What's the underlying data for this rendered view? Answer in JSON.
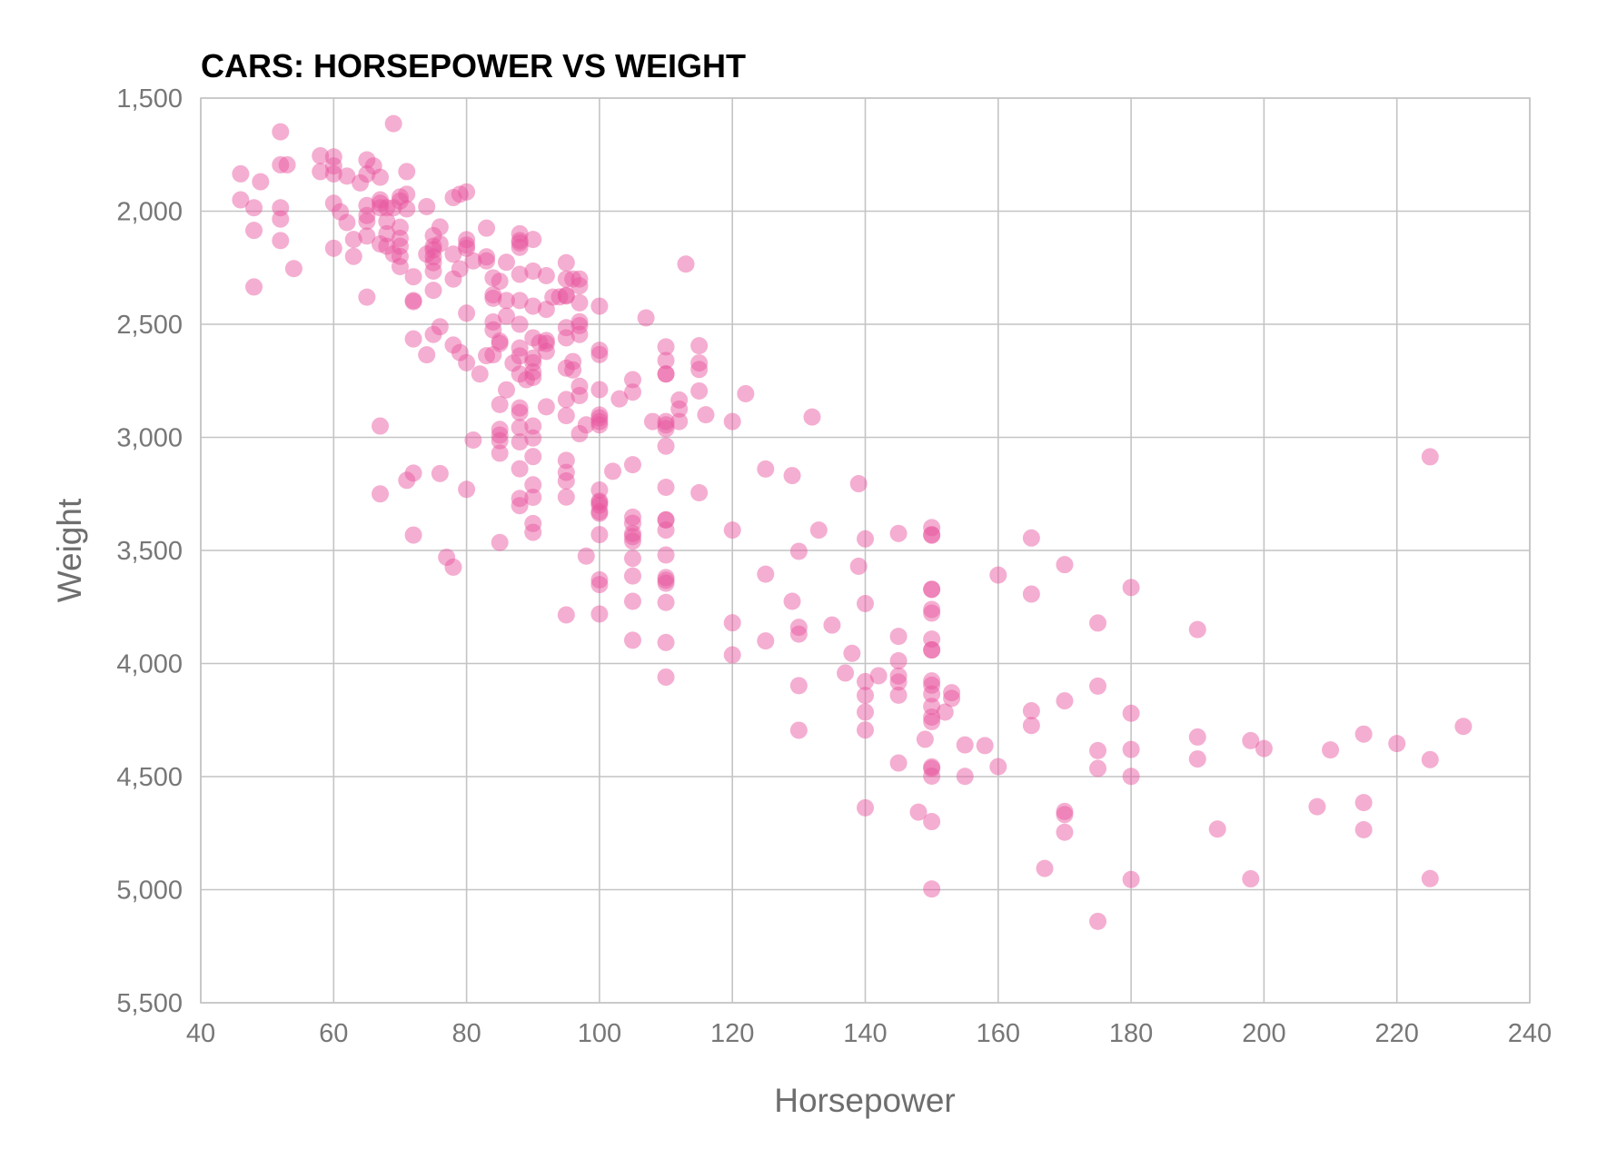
{
  "chart_data": {
    "type": "scatter",
    "title": "CARS: HORSEPOWER VS WEIGHT",
    "xlabel": "Horsepower",
    "ylabel": "Weight",
    "xlim": [
      40,
      240
    ],
    "ylim": [
      1500,
      5500
    ],
    "y_axis_inverted": true,
    "x_ticks": [
      "40",
      "60",
      "80",
      "100",
      "120",
      "140",
      "160",
      "180",
      "200",
      "220",
      "240"
    ],
    "y_ticks": [
      "1,500",
      "2,000",
      "2,500",
      "3,000",
      "3,500",
      "4,000",
      "4,500",
      "5,000",
      "5,500"
    ],
    "x_tick_values": [
      40,
      60,
      80,
      100,
      120,
      140,
      160,
      180,
      200,
      220,
      240
    ],
    "y_tick_values": [
      1500,
      2000,
      2500,
      3000,
      3500,
      4000,
      4500,
      5000,
      5500
    ],
    "grid": true,
    "legend": "none",
    "marker_color": "#e8559f",
    "marker_opacity": 0.48,
    "points": [
      [
        46,
        1835
      ],
      [
        46,
        1950
      ],
      [
        48,
        1985
      ],
      [
        48,
        2085
      ],
      [
        48,
        2335
      ],
      [
        49,
        1870
      ],
      [
        52,
        1649
      ],
      [
        52,
        1795
      ],
      [
        52,
        1985
      ],
      [
        52,
        2035
      ],
      [
        52,
        2130
      ],
      [
        53,
        1795
      ],
      [
        54,
        2254
      ],
      [
        58,
        1755
      ],
      [
        58,
        1825
      ],
      [
        60,
        1760
      ],
      [
        60,
        1800
      ],
      [
        60,
        1835
      ],
      [
        60,
        1965
      ],
      [
        60,
        2164
      ],
      [
        61,
        2003
      ],
      [
        62,
        1845
      ],
      [
        62,
        2050
      ],
      [
        63,
        2125
      ],
      [
        63,
        2200
      ],
      [
        64,
        1875
      ],
      [
        65,
        1773
      ],
      [
        65,
        1836
      ],
      [
        65,
        1975
      ],
      [
        65,
        2019
      ],
      [
        65,
        2045
      ],
      [
        65,
        2110
      ],
      [
        65,
        2380
      ],
      [
        66,
        1800
      ],
      [
        67,
        1850
      ],
      [
        67,
        1950
      ],
      [
        67,
        1965
      ],
      [
        67,
        1985
      ],
      [
        67,
        2145
      ],
      [
        67,
        2950
      ],
      [
        67,
        3250
      ],
      [
        68,
        1985
      ],
      [
        68,
        2045
      ],
      [
        68,
        2100
      ],
      [
        68,
        2155
      ],
      [
        69,
        1613
      ],
      [
        69,
        1985
      ],
      [
        69,
        2189
      ],
      [
        70,
        1937
      ],
      [
        70,
        1955
      ],
      [
        70,
        2071
      ],
      [
        70,
        2120
      ],
      [
        70,
        2155
      ],
      [
        70,
        2200
      ],
      [
        70,
        2245
      ],
      [
        71,
        1825
      ],
      [
        71,
        1925
      ],
      [
        71,
        1990
      ],
      [
        71,
        3190
      ],
      [
        72,
        2290
      ],
      [
        72,
        2395
      ],
      [
        72,
        2400
      ],
      [
        72,
        2565
      ],
      [
        72,
        3158
      ],
      [
        72,
        3432
      ],
      [
        74,
        1980
      ],
      [
        74,
        2190
      ],
      [
        74,
        2635
      ],
      [
        75,
        2108
      ],
      [
        75,
        2171
      ],
      [
        75,
        2202
      ],
      [
        75,
        2228
      ],
      [
        75,
        2265
      ],
      [
        75,
        2350
      ],
      [
        75,
        2545
      ],
      [
        75,
        2155
      ],
      [
        76,
        2070
      ],
      [
        76,
        2144
      ],
      [
        76,
        2511
      ],
      [
        76,
        3160
      ],
      [
        77,
        3530
      ],
      [
        78,
        1940
      ],
      [
        78,
        2190
      ],
      [
        78,
        2300
      ],
      [
        78,
        2592
      ],
      [
        78,
        3574
      ],
      [
        79,
        1925
      ],
      [
        79,
        2255
      ],
      [
        79,
        2625
      ],
      [
        80,
        1915
      ],
      [
        80,
        2126
      ],
      [
        80,
        2150
      ],
      [
        80,
        2164
      ],
      [
        80,
        2451
      ],
      [
        80,
        2670
      ],
      [
        80,
        3230
      ],
      [
        81,
        2220
      ],
      [
        81,
        3012
      ],
      [
        82,
        2720
      ],
      [
        83,
        2075
      ],
      [
        83,
        2202
      ],
      [
        83,
        2220
      ],
      [
        83,
        2639
      ],
      [
        84,
        2295
      ],
      [
        84,
        2370
      ],
      [
        84,
        2385
      ],
      [
        84,
        2490
      ],
      [
        84,
        2525
      ],
      [
        84,
        2635
      ],
      [
        85,
        2310
      ],
      [
        85,
        2575
      ],
      [
        85,
        2585
      ],
      [
        85,
        2855
      ],
      [
        85,
        2965
      ],
      [
        85,
        2990
      ],
      [
        85,
        3015
      ],
      [
        85,
        3070
      ],
      [
        85,
        3465
      ],
      [
        86,
        2226
      ],
      [
        86,
        2395
      ],
      [
        86,
        2464
      ],
      [
        86,
        2790
      ],
      [
        87,
        2672
      ],
      [
        88,
        2100
      ],
      [
        88,
        2130
      ],
      [
        88,
        2140
      ],
      [
        88,
        2160
      ],
      [
        88,
        2279
      ],
      [
        88,
        2395
      ],
      [
        88,
        2500
      ],
      [
        88,
        2605
      ],
      [
        88,
        2640
      ],
      [
        88,
        2720
      ],
      [
        88,
        2870
      ],
      [
        88,
        2890
      ],
      [
        88,
        2957
      ],
      [
        88,
        3020
      ],
      [
        88,
        3139
      ],
      [
        88,
        3270
      ],
      [
        88,
        3302
      ],
      [
        89,
        2745
      ],
      [
        90,
        2125
      ],
      [
        90,
        2265
      ],
      [
        90,
        2420
      ],
      [
        90,
        2560
      ],
      [
        90,
        2650
      ],
      [
        90,
        2670
      ],
      [
        90,
        2711
      ],
      [
        90,
        2735
      ],
      [
        90,
        2950
      ],
      [
        90,
        3003
      ],
      [
        90,
        3085
      ],
      [
        90,
        3210
      ],
      [
        90,
        3265
      ],
      [
        90,
        3381
      ],
      [
        90,
        3420
      ],
      [
        91,
        2582
      ],
      [
        92,
        2285
      ],
      [
        92,
        2434
      ],
      [
        92,
        2572
      ],
      [
        92,
        2585
      ],
      [
        92,
        2620
      ],
      [
        92,
        2865
      ],
      [
        93,
        2380
      ],
      [
        94,
        2379
      ],
      [
        95,
        2228
      ],
      [
        95,
        2300
      ],
      [
        95,
        2372
      ],
      [
        95,
        2375
      ],
      [
        95,
        2515
      ],
      [
        95,
        2560
      ],
      [
        95,
        2694
      ],
      [
        95,
        2833
      ],
      [
        95,
        2904
      ],
      [
        95,
        3102
      ],
      [
        95,
        3155
      ],
      [
        95,
        3193
      ],
      [
        95,
        3264
      ],
      [
        95,
        3785
      ],
      [
        96,
        2300
      ],
      [
        96,
        2665
      ],
      [
        96,
        2702
      ],
      [
        97,
        2300
      ],
      [
        97,
        2330
      ],
      [
        97,
        2405
      ],
      [
        97,
        2489
      ],
      [
        97,
        2506
      ],
      [
        97,
        2545
      ],
      [
        97,
        2774
      ],
      [
        97,
        2815
      ],
      [
        97,
        2984
      ],
      [
        98,
        2945
      ],
      [
        98,
        3525
      ],
      [
        100,
        2420
      ],
      [
        100,
        2615
      ],
      [
        100,
        2634
      ],
      [
        100,
        2789
      ],
      [
        100,
        2901
      ],
      [
        100,
        2914
      ],
      [
        100,
        2930
      ],
      [
        100,
        2945
      ],
      [
        100,
        3233
      ],
      [
        100,
        3282
      ],
      [
        100,
        3288
      ],
      [
        100,
        3300
      ],
      [
        100,
        3329
      ],
      [
        100,
        3336
      ],
      [
        100,
        3430
      ],
      [
        100,
        3630
      ],
      [
        100,
        3651
      ],
      [
        100,
        3781
      ],
      [
        102,
        3150
      ],
      [
        103,
        2830
      ],
      [
        105,
        2745
      ],
      [
        105,
        2800
      ],
      [
        105,
        3121
      ],
      [
        105,
        3353
      ],
      [
        105,
        3380
      ],
      [
        105,
        3425
      ],
      [
        105,
        3439
      ],
      [
        105,
        3459
      ],
      [
        105,
        3535
      ],
      [
        105,
        3613
      ],
      [
        105,
        3725
      ],
      [
        105,
        3897
      ],
      [
        107,
        2472
      ],
      [
        108,
        2930
      ],
      [
        110,
        2600
      ],
      [
        110,
        2660
      ],
      [
        110,
        2720
      ],
      [
        110,
        2720
      ],
      [
        110,
        2930
      ],
      [
        110,
        2945
      ],
      [
        110,
        2962
      ],
      [
        110,
        3039
      ],
      [
        110,
        3221
      ],
      [
        110,
        3365
      ],
      [
        110,
        3365
      ],
      [
        110,
        3410
      ],
      [
        110,
        3520
      ],
      [
        110,
        3620
      ],
      [
        110,
        3632
      ],
      [
        110,
        3645
      ],
      [
        110,
        3730
      ],
      [
        110,
        3907
      ],
      [
        110,
        4060
      ],
      [
        112,
        2835
      ],
      [
        112,
        2875
      ],
      [
        112,
        2930
      ],
      [
        113,
        2234
      ],
      [
        115,
        2595
      ],
      [
        115,
        2671
      ],
      [
        115,
        2700
      ],
      [
        115,
        2795
      ],
      [
        115,
        3245
      ],
      [
        116,
        2900
      ],
      [
        120,
        2930
      ],
      [
        120,
        3410
      ],
      [
        120,
        3820
      ],
      [
        120,
        3962
      ],
      [
        122,
        2807
      ],
      [
        125,
        3140
      ],
      [
        125,
        3605
      ],
      [
        125,
        3900
      ],
      [
        129,
        3169
      ],
      [
        129,
        3725
      ],
      [
        130,
        3504
      ],
      [
        130,
        3840
      ],
      [
        130,
        3870
      ],
      [
        130,
        4098
      ],
      [
        130,
        4295
      ],
      [
        132,
        2910
      ],
      [
        133,
        3410
      ],
      [
        135,
        3830
      ],
      [
        137,
        4042
      ],
      [
        138,
        3955
      ],
      [
        139,
        3205
      ],
      [
        139,
        3570
      ],
      [
        140,
        3449
      ],
      [
        140,
        3735
      ],
      [
        140,
        4080
      ],
      [
        140,
        4141
      ],
      [
        140,
        4215
      ],
      [
        140,
        4294
      ],
      [
        140,
        4638
      ],
      [
        142,
        4054
      ],
      [
        145,
        3425
      ],
      [
        145,
        3880
      ],
      [
        145,
        3988
      ],
      [
        145,
        4055
      ],
      [
        145,
        4082
      ],
      [
        145,
        4140
      ],
      [
        145,
        4440
      ],
      [
        148,
        4657
      ],
      [
        149,
        4335
      ],
      [
        150,
        3399
      ],
      [
        150,
        3430
      ],
      [
        150,
        3433
      ],
      [
        150,
        3672
      ],
      [
        150,
        3672
      ],
      [
        150,
        3761
      ],
      [
        150,
        3777
      ],
      [
        150,
        3892
      ],
      [
        150,
        3940
      ],
      [
        150,
        3940
      ],
      [
        150,
        4077
      ],
      [
        150,
        4096
      ],
      [
        150,
        4135
      ],
      [
        150,
        4190
      ],
      [
        150,
        4237
      ],
      [
        150,
        4257
      ],
      [
        150,
        4457
      ],
      [
        150,
        4464
      ],
      [
        150,
        4498
      ],
      [
        150,
        4699
      ],
      [
        150,
        4997
      ],
      [
        152,
        4215
      ],
      [
        153,
        4129
      ],
      [
        153,
        4154
      ],
      [
        155,
        4360
      ],
      [
        155,
        4499
      ],
      [
        158,
        4363
      ],
      [
        160,
        3609
      ],
      [
        160,
        4456
      ],
      [
        165,
        3445
      ],
      [
        165,
        3693
      ],
      [
        165,
        4209
      ],
      [
        165,
        4274
      ],
      [
        167,
        4906
      ],
      [
        170,
        3563
      ],
      [
        170,
        4165
      ],
      [
        170,
        4654
      ],
      [
        170,
        4668
      ],
      [
        170,
        4746
      ],
      [
        175,
        3821
      ],
      [
        175,
        4100
      ],
      [
        175,
        4385
      ],
      [
        175,
        4464
      ],
      [
        175,
        5140
      ],
      [
        180,
        3664
      ],
      [
        180,
        4220
      ],
      [
        180,
        4380
      ],
      [
        180,
        4499
      ],
      [
        180,
        4955
      ],
      [
        190,
        3850
      ],
      [
        190,
        4325
      ],
      [
        190,
        4422
      ],
      [
        193,
        4732
      ],
      [
        198,
        4341
      ],
      [
        198,
        4952
      ],
      [
        200,
        4376
      ],
      [
        208,
        4633
      ],
      [
        210,
        4382
      ],
      [
        215,
        4312
      ],
      [
        215,
        4615
      ],
      [
        215,
        4735
      ],
      [
        220,
        4354
      ],
      [
        225,
        3086
      ],
      [
        225,
        4425
      ],
      [
        225,
        4951
      ],
      [
        230,
        4278
      ]
    ]
  }
}
